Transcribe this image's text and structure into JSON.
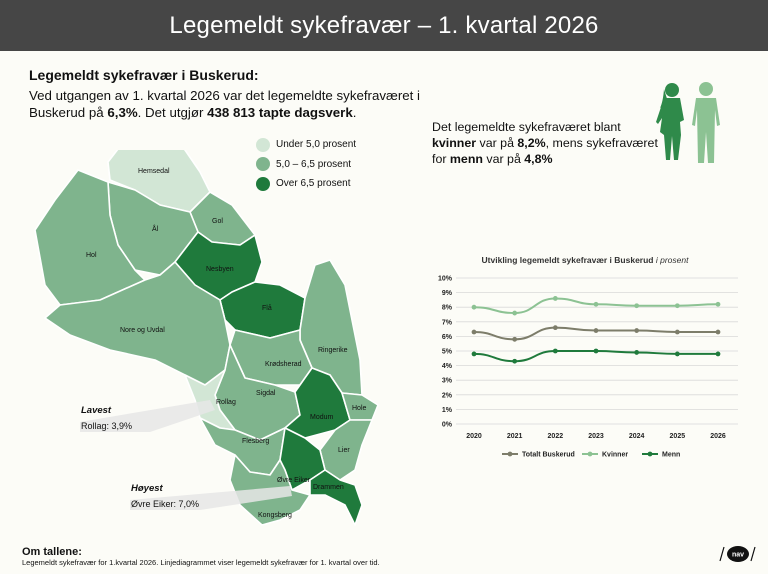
{
  "header": {
    "title": "Legemeldt sykefravær – 1. kvartal 2026"
  },
  "intro": {
    "title": "Legemeldt sykefravær i Buskerud:",
    "text_1": "Ved utgangen av 1. kvartal 2026 var det legemeldte sykefraværet i Buskerud på ",
    "rate": "6,3%",
    "text_2": ". Det utgjør ",
    "days": "438 813 tapte dagsverk",
    "text_3": "."
  },
  "legend": [
    {
      "label": "Under 5,0 prosent",
      "color": "#d2e6d5"
    },
    {
      "label": "5,0 – 6,5 prosent",
      "color": "#7fb48d"
    },
    {
      "label": "Over 6,5 prosent",
      "color": "#1f7a3c"
    }
  ],
  "map": {
    "municipalities": [
      "Hemsedal",
      "Gol",
      "Ål",
      "Hol",
      "Nesbyen",
      "Flå",
      "Nore og Uvdal",
      "Ringerike",
      "Krødsherad",
      "Sigdal",
      "Rollag",
      "Modum",
      "Hole",
      "Flesberg",
      "Lier",
      "Øvre Eiker",
      "Drammen",
      "Kongsberg"
    ],
    "lowest": {
      "heading": "Lavest",
      "text": "Rollag: 3,9%"
    },
    "highest": {
      "heading": "Høyest",
      "text": "Øvre Eiker: 7,0%"
    }
  },
  "gender": {
    "t1": "Det legemeldte sykefraværet blant ",
    "women": "kvinner",
    "t2": " var på ",
    "women_rate": "8,2%",
    "t3": ", mens sykefraværet for ",
    "men": "menn",
    "t4": " var på ",
    "men_rate": "4,8%"
  },
  "chart_data": {
    "type": "line",
    "title": "Utvikling legemeldt sykefravær i Buskerud",
    "title_suffix": "i prosent",
    "x": [
      "2020",
      "2021",
      "2022",
      "2023",
      "2024",
      "2025",
      "2026"
    ],
    "ylim": [
      0,
      10
    ],
    "y_ticks": [
      "0%",
      "1%",
      "2%",
      "3%",
      "4%",
      "5%",
      "6%",
      "7%",
      "8%",
      "9%",
      "10%"
    ],
    "grid": true,
    "legend_position": "bottom",
    "series": [
      {
        "name": "Totalt Buskerud",
        "color": "#7d7d6a",
        "values": [
          6.3,
          5.8,
          6.6,
          6.4,
          6.4,
          6.3,
          6.3
        ]
      },
      {
        "name": "Kvinner",
        "color": "#8cc293",
        "values": [
          8.0,
          7.6,
          8.6,
          8.2,
          8.1,
          8.1,
          8.2
        ]
      },
      {
        "name": "Menn",
        "color": "#1f7a3c",
        "values": [
          4.8,
          4.3,
          5.0,
          5.0,
          4.9,
          4.8,
          4.8
        ]
      }
    ]
  },
  "footer": {
    "title": "Om tallene:",
    "text": "Legemeldt sykefravær for 1.kvartal 2026. Linjediagrammet viser legemeldt sykefravær for 1. kvartal over tid."
  },
  "logo": {
    "text": "nav"
  }
}
